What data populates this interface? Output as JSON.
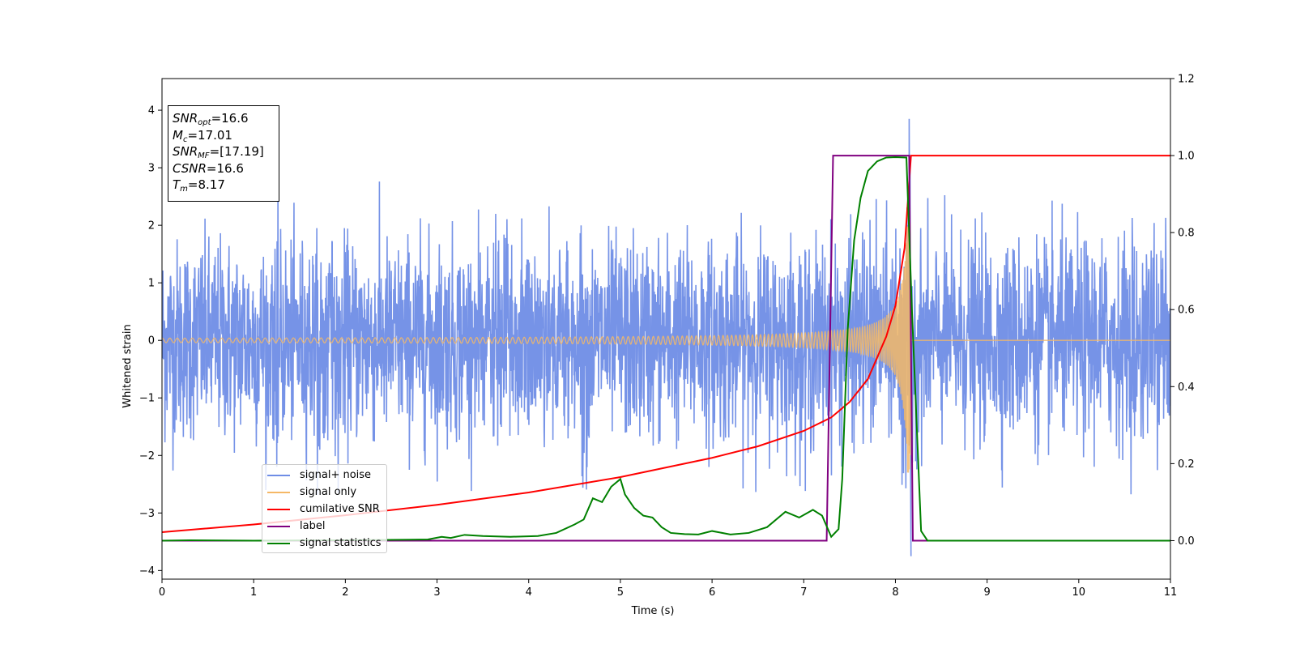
{
  "chart_data": {
    "type": "line",
    "xlabel": "Time (s)",
    "ylabel": "Whitened strain",
    "xlim": [
      0,
      11
    ],
    "ylim": [
      -4.15,
      4.55
    ],
    "y2lim": [
      -0.1,
      1.2
    ],
    "xticks": [
      "0",
      "1",
      "2",
      "3",
      "4",
      "5",
      "6",
      "7",
      "8",
      "9",
      "10",
      "11"
    ],
    "yticks": [
      "−4",
      "−3",
      "−2",
      "−1",
      "0",
      "1",
      "2",
      "3",
      "4"
    ],
    "y2ticks": [
      "0.0",
      "0.2",
      "0.4",
      "0.6",
      "0.8",
      "1.0",
      "1.2"
    ],
    "legend_position": "lower-left",
    "grid": false,
    "annotation": {
      "snr_opt": "=16.6",
      "mc": "=17.01",
      "snr_mf": "=[17.19]",
      "csnr": "=16.6",
      "tm": "=8.17"
    },
    "series": [
      {
        "name": "signal+ noise",
        "axis": "left",
        "color": "#6f8de6",
        "description_of_values": "noise band, amplitude about ±2 with peaks to ±3, spike to 3.85 near t=8.15",
        "envelope": {
          "upper_typical": 1.5,
          "upper_peak": 2.9,
          "lower_typical": -1.5,
          "lower_peak": -2.5
        },
        "notable_points": [
          [
            8.15,
            3.85
          ],
          [
            8.17,
            -3.75
          ],
          [
            1.07,
            -1.15
          ],
          [
            4.55,
            1.2
          ]
        ]
      },
      {
        "name": "signal only",
        "axis": "left",
        "color": "#f5b866",
        "description_of_values": "chirp from t=0 to 8.17, amplitude growing from 0.02 to 2.3, then 0",
        "chirp_end": 8.17,
        "amplitude_end": 2.3
      },
      {
        "name": "cumilative SNR",
        "axis": "right",
        "color": "#ff0000",
        "x": [
          0,
          1,
          2,
          3,
          4,
          5,
          6,
          6.5,
          7,
          7.3,
          7.5,
          7.7,
          7.9,
          8.0,
          8.1,
          8.17,
          8.18,
          11
        ],
        "values": [
          0.022,
          0.042,
          0.066,
          0.093,
          0.125,
          0.165,
          0.215,
          0.245,
          0.285,
          0.32,
          0.36,
          0.42,
          0.53,
          0.61,
          0.76,
          1.0,
          1.0,
          1.0
        ]
      },
      {
        "name": "label",
        "axis": "right",
        "color": "#800080",
        "x": [
          0,
          7.25,
          7.32,
          8.15,
          8.19,
          11
        ],
        "values": [
          0,
          0,
          1,
          1,
          0,
          0
        ]
      },
      {
        "name": "signal statistics",
        "axis": "right",
        "color": "#008000",
        "x": [
          0,
          0.3,
          1,
          2,
          2.9,
          3.05,
          3.15,
          3.3,
          3.5,
          3.8,
          4.1,
          4.3,
          4.5,
          4.6,
          4.7,
          4.8,
          4.9,
          5.0,
          5.05,
          5.15,
          5.25,
          5.35,
          5.45,
          5.55,
          5.7,
          5.85,
          6.0,
          6.2,
          6.4,
          6.6,
          6.8,
          6.95,
          7.1,
          7.2,
          7.3,
          7.38,
          7.42,
          7.48,
          7.55,
          7.62,
          7.7,
          7.8,
          7.9,
          8.0,
          8.12,
          8.18,
          8.28,
          8.35,
          9,
          11
        ],
        "values": [
          0,
          0.001,
          0,
          0.001,
          0.003,
          0.01,
          0.007,
          0.015,
          0.012,
          0.01,
          0.012,
          0.02,
          0.042,
          0.055,
          0.11,
          0.1,
          0.14,
          0.16,
          0.12,
          0.085,
          0.065,
          0.06,
          0.035,
          0.02,
          0.017,
          0.016,
          0.025,
          0.016,
          0.02,
          0.035,
          0.075,
          0.06,
          0.08,
          0.065,
          0.01,
          0.03,
          0.16,
          0.55,
          0.78,
          0.89,
          0.96,
          0.985,
          0.995,
          0.996,
          0.995,
          0.6,
          0.025,
          0,
          0,
          0
        ]
      }
    ]
  }
}
